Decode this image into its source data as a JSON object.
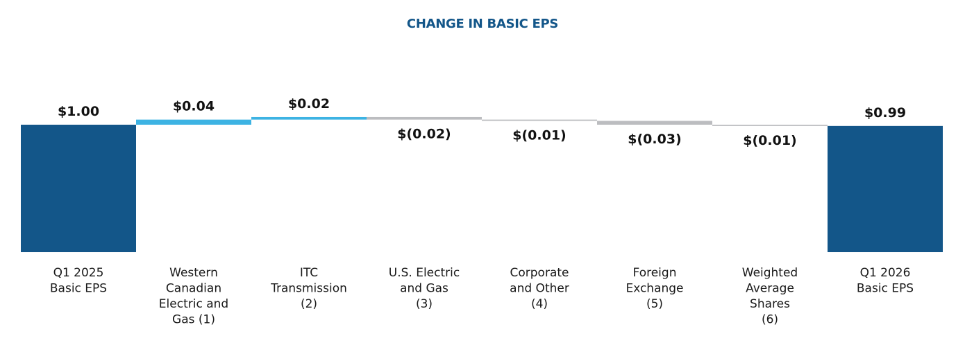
{
  "chart_data": {
    "type": "bar",
    "subtype": "waterfall",
    "title": "CHANGE IN BASIC EPS",
    "categories": [
      [
        "Q1 2025",
        "Basic EPS"
      ],
      [
        "Western",
        "Canadian",
        "Electric and",
        "Gas (1)"
      ],
      [
        "ITC",
        "Transmission",
        "(2)"
      ],
      [
        "U.S. Electric",
        "and Gas",
        "(3)"
      ],
      [
        "Corporate",
        "and Other",
        "(4)"
      ],
      [
        "Foreign",
        "Exchange",
        "(5)"
      ],
      [
        "Weighted",
        "Average",
        "Shares",
        "(6)"
      ],
      [
        "Q1 2026",
        "Basic EPS"
      ]
    ],
    "values": [
      1.0,
      0.04,
      0.02,
      -0.02,
      -0.01,
      -0.03,
      -0.01,
      0.99
    ],
    "value_labels": [
      "$1.00",
      "$0.04",
      "$0.02",
      "$(0.02)",
      "$(0.01)",
      "$(0.03)",
      "$(0.01)",
      "$0.99"
    ],
    "bar_kinds": [
      "total",
      "increase",
      "increase",
      "decrease",
      "decrease",
      "decrease",
      "decrease",
      "total"
    ],
    "colors": {
      "total": "#135689",
      "increase": "#3db3e3",
      "decrease": "#bcbdc0",
      "title": "#135689"
    },
    "axes_visible": false,
    "grid": false,
    "legend": "none"
  }
}
